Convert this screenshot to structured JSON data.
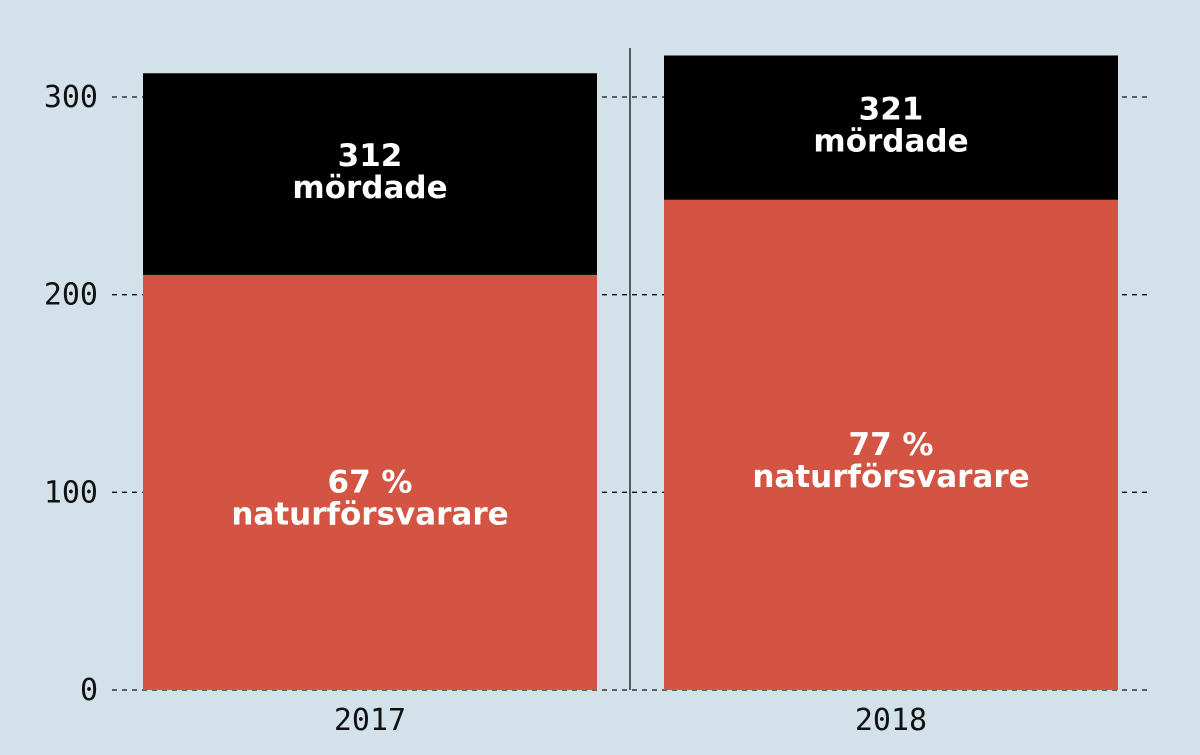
{
  "colors": {
    "background": "#d3e2ea",
    "murdered": "#000000",
    "defenders": "#d35443",
    "text": "#111111",
    "label": "#ffffff"
  },
  "chart_data": {
    "type": "bar",
    "stacked": true,
    "categories": [
      "2017",
      "2018"
    ],
    "series": [
      {
        "key": "defenders",
        "values": [
          210,
          248
        ]
      },
      {
        "key": "murdered",
        "values": [
          102,
          73
        ]
      }
    ],
    "totals": [
      312,
      321
    ],
    "annotations": [
      {
        "total": "312",
        "total_text": "mördade",
        "share": "67 %",
        "share_text": "naturförsvarare"
      },
      {
        "total": "321",
        "total_text": "mördade",
        "share": "77 %",
        "share_text": "naturförsvarare"
      }
    ],
    "yticks": [
      "0",
      "100",
      "200",
      "300"
    ],
    "ylim": [
      0,
      325
    ],
    "grid": true,
    "legend": "none"
  }
}
